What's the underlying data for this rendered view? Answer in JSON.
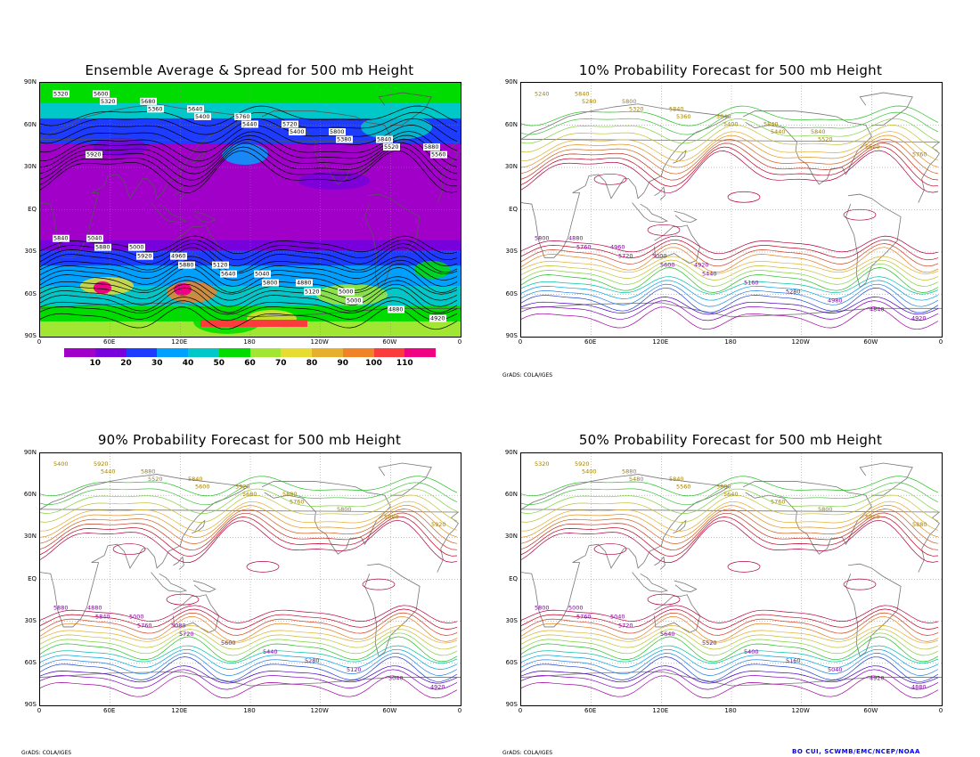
{
  "panels": [
    {
      "id": "p1",
      "title": "Ensemble Average & Spread for 500 mb Height",
      "type": "spread"
    },
    {
      "id": "p2",
      "title": "10% Probability Forecast for 500 mb Height",
      "type": "prob"
    },
    {
      "id": "p3",
      "title": "90% Probability Forecast for 500 mb Height",
      "type": "prob"
    },
    {
      "id": "p4",
      "title": "50% Probability Forecast for 500 mb Height",
      "type": "prob"
    }
  ],
  "lat_labels": [
    "90N",
    "60N",
    "30N",
    "EQ",
    "30S",
    "60S",
    "90S"
  ],
  "lon_labels": [
    "0",
    "60E",
    "120E",
    "180",
    "120W",
    "60W",
    "0"
  ],
  "colorbar": {
    "labels": [
      "10",
      "20",
      "30",
      "40",
      "50",
      "60",
      "70",
      "80",
      "90",
      "100",
      "110"
    ],
    "colors": [
      "#a000c8",
      "#7800dc",
      "#1e3cff",
      "#00a0ff",
      "#00c8c8",
      "#00dc00",
      "#a0e632",
      "#e6dc32",
      "#e6af2d",
      "#f08228",
      "#fa3c3c",
      "#f00082"
    ]
  },
  "footer_left": "GrADS: COLA/IGES",
  "credit": "BO CUI, SCWMB/EMC/NCEP/NOAA",
  "contour_labels": {
    "p1": [
      "5320",
      "5320",
      "5360",
      "5400",
      "5440",
      "5400",
      "5380",
      "5520",
      "5560",
      "5600",
      "5680",
      "5640",
      "5760",
      "5720",
      "5800",
      "5840",
      "5880",
      "5920",
      "5840",
      "5880",
      "5920",
      "5880",
      "5640",
      "5800",
      "5120",
      "5000",
      "4880",
      "4920",
      "5040",
      "5000",
      "4960",
      "5120",
      "5040",
      "4880",
      "5000"
    ],
    "p2": [
      "5240",
      "5280",
      "5320",
      "5360",
      "5400",
      "5440",
      "5520",
      "5640",
      "5760",
      "5840",
      "5800",
      "5840",
      "5640",
      "5840",
      "5840",
      "5800",
      "5760",
      "5720",
      "5600",
      "5440",
      "5160",
      "5280",
      "4980",
      "4840",
      "4920",
      "4880",
      "4960",
      "5000",
      "4920"
    ],
    "p3": [
      "5400",
      "5440",
      "5520",
      "5600",
      "5680",
      "5760",
      "5800",
      "5880",
      "5920",
      "5920",
      "5880",
      "5840",
      "5920",
      "5880",
      "5880",
      "5840",
      "5760",
      "5720",
      "5600",
      "5440",
      "5280",
      "5120",
      "5040",
      "4920",
      "4880",
      "5000",
      "5080"
    ],
    "p4": [
      "5320",
      "5400",
      "5480",
      "5560",
      "5640",
      "5760",
      "5800",
      "5840",
      "5880",
      "5920",
      "5880",
      "5840",
      "5880",
      "5800",
      "5760",
      "5720",
      "5640",
      "5520",
      "5400",
      "5160",
      "5040",
      "4920",
      "4880",
      "5000",
      "5040"
    ]
  }
}
